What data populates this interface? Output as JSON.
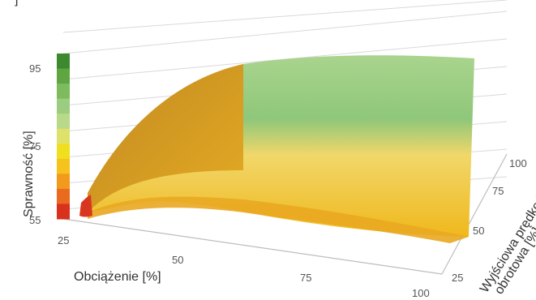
{
  "chart_data": {
    "type": "surface",
    "top_partial_text": "] ",
    "zlabel": "Sprawność [%]",
    "xlabel": "Obciążenie [%]",
    "ylabel_line1": "Wyjściowa prędkość",
    "ylabel_line2": "obrotowa [%]",
    "z_ticks": [
      "95",
      "75",
      "55"
    ],
    "x_ticks": [
      "25",
      "50",
      "75",
      "100"
    ],
    "y_ticks": [
      "25",
      "50",
      "75",
      "100"
    ],
    "zlim": [
      55,
      95
    ],
    "x": [
      25,
      50,
      75,
      100
    ],
    "y": [
      25,
      50,
      75,
      100
    ],
    "z": [
      [
        57,
        62,
        64,
        62
      ],
      [
        66,
        74,
        77,
        77
      ],
      [
        72,
        82,
        85,
        86
      ],
      [
        76,
        87,
        90,
        91
      ]
    ],
    "color_scale": [
      "#d8321e",
      "#ea6a1f",
      "#f29a1d",
      "#f6c21d",
      "#f0df1e",
      "#dfe26a",
      "#b8d98a",
      "#9ccc7f",
      "#7dbb5c",
      "#5fa640",
      "#3d8a2e"
    ],
    "colors": {
      "surface_low": "#e6a21f",
      "surface_mid": "#f4c53a",
      "surface_high": "#8fc77a",
      "surface_top": "#77b76e"
    }
  }
}
